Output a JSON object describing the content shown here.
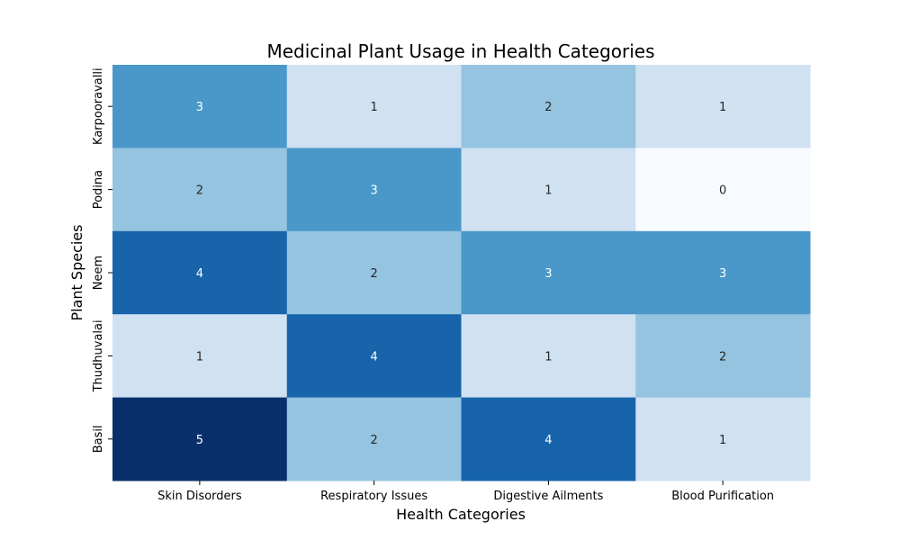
{
  "chart_data": {
    "type": "heatmap",
    "title": "Medicinal Plant Usage in Health Categories",
    "xlabel": "Health Categories",
    "ylabel": "Plant Species",
    "x_categories": [
      "Skin Disorders",
      "Respiratory Issues",
      "Digestive Ailments",
      "Blood Purification"
    ],
    "y_categories": [
      "Karpooravalli",
      "Podina",
      "Neem",
      "Thudhuvalai",
      "Basil"
    ],
    "values": [
      [
        3,
        1,
        2,
        1
      ],
      [
        2,
        3,
        1,
        0
      ],
      [
        4,
        2,
        3,
        3
      ],
      [
        1,
        4,
        1,
        2
      ],
      [
        5,
        2,
        4,
        1
      ]
    ],
    "value_range": [
      0,
      5
    ],
    "colormap": "Blues",
    "annotations": true,
    "grid": false,
    "legend": "none"
  }
}
